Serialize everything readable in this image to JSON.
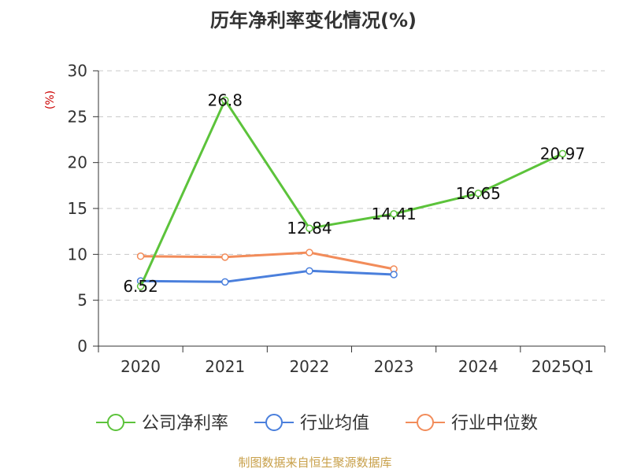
{
  "chart_data": {
    "type": "line",
    "title": "历年净利率变化情况(%)",
    "unit_label": "(%)",
    "categories": [
      "2020",
      "2021",
      "2022",
      "2023",
      "2024",
      "2025Q1"
    ],
    "ylim": [
      0,
      30
    ],
    "yticks": [
      0,
      5,
      10,
      15,
      20,
      25,
      30
    ],
    "grid": true,
    "legend_position": "bottom",
    "series": [
      {
        "name": "公司净利率",
        "color": "#5cc33b",
        "values": [
          6.52,
          26.8,
          12.84,
          14.41,
          16.65,
          20.97
        ],
        "show_labels": true,
        "labels": [
          "6.52",
          "26.8",
          "12.84",
          "14.41",
          "16.65",
          "20.97"
        ]
      },
      {
        "name": "行业均值",
        "color": "#4a7fdc",
        "values": [
          7.1,
          7.0,
          8.2,
          7.8,
          null,
          null
        ],
        "show_labels": false
      },
      {
        "name": "行业中位数",
        "color": "#f28c5a",
        "values": [
          9.8,
          9.7,
          10.2,
          8.4,
          null,
          null
        ],
        "show_labels": false
      }
    ]
  },
  "footer": {
    "source": "制图数据来自恒生聚源数据库"
  }
}
